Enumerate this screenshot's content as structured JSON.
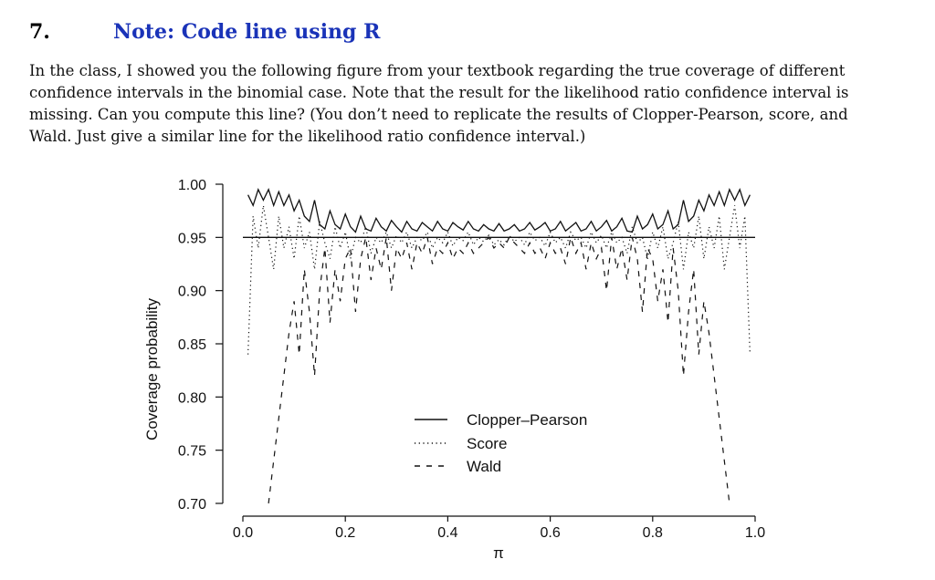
{
  "question": {
    "number": "7.",
    "title": "Note: Code line using R",
    "body_lines": [
      "In the class, I showed you the following figure from your textbook regarding the true coverage of different",
      "confidence intervals in the binomial case. Note that the result for the likelihood ratio confidence interval is",
      "missing. Can you compute this line? (You don’t need to replicate the results of Clopper-Pearson, score, and",
      "Wald. Just give a similar line for the likelihood ratio confidence interval.)"
    ]
  },
  "colors": {
    "title": "#1a33b8",
    "text": "#111111",
    "lines": "#111111"
  },
  "chart_data": {
    "type": "line",
    "xlabel": "π",
    "ylabel": "Coverage probability",
    "xlim": [
      0.0,
      1.0
    ],
    "ylim": [
      0.7,
      1.0
    ],
    "xticks": [
      "0.0",
      "0.2",
      "0.4",
      "0.6",
      "0.8",
      "1.0"
    ],
    "xtick_values": [
      0.0,
      0.2,
      0.4,
      0.6,
      0.8,
      1.0
    ],
    "yticks": [
      "1.00",
      "0.95",
      "0.90",
      "0.85",
      "0.80",
      "0.75",
      "0.70"
    ],
    "ytick_values": [
      1.0,
      0.95,
      0.9,
      0.85,
      0.8,
      0.75,
      0.7
    ],
    "reference_line": 0.95,
    "legend_position": "center",
    "series": [
      {
        "name": "Clopper–Pearson",
        "style": "solid",
        "x": [
          0.01,
          0.02,
          0.03,
          0.04,
          0.05,
          0.06,
          0.07,
          0.08,
          0.09,
          0.1,
          0.11,
          0.12,
          0.13,
          0.14,
          0.15,
          0.16,
          0.17,
          0.18,
          0.19,
          0.2,
          0.21,
          0.22,
          0.23,
          0.24,
          0.25,
          0.26,
          0.27,
          0.28,
          0.29,
          0.3,
          0.31,
          0.32,
          0.33,
          0.34,
          0.35,
          0.36,
          0.37,
          0.38,
          0.39,
          0.4,
          0.41,
          0.42,
          0.43,
          0.44,
          0.45,
          0.46,
          0.47,
          0.48,
          0.49,
          0.5,
          0.51,
          0.52,
          0.53,
          0.54,
          0.55,
          0.56,
          0.57,
          0.58,
          0.59,
          0.6,
          0.61,
          0.62,
          0.63,
          0.64,
          0.65,
          0.66,
          0.67,
          0.68,
          0.69,
          0.7,
          0.71,
          0.72,
          0.73,
          0.74,
          0.75,
          0.76,
          0.77,
          0.78,
          0.79,
          0.8,
          0.81,
          0.82,
          0.83,
          0.84,
          0.85,
          0.86,
          0.87,
          0.88,
          0.89,
          0.9,
          0.91,
          0.92,
          0.93,
          0.94,
          0.95,
          0.96,
          0.97,
          0.98,
          0.99
        ],
        "values": [
          0.99,
          0.98,
          0.995,
          0.985,
          0.995,
          0.98,
          0.993,
          0.98,
          0.99,
          0.975,
          0.985,
          0.97,
          0.965,
          0.985,
          0.962,
          0.958,
          0.975,
          0.962,
          0.958,
          0.972,
          0.96,
          0.955,
          0.97,
          0.958,
          0.956,
          0.968,
          0.96,
          0.956,
          0.966,
          0.96,
          0.955,
          0.965,
          0.958,
          0.956,
          0.964,
          0.96,
          0.956,
          0.965,
          0.958,
          0.956,
          0.964,
          0.96,
          0.957,
          0.965,
          0.958,
          0.956,
          0.962,
          0.958,
          0.956,
          0.963,
          0.956,
          0.958,
          0.962,
          0.956,
          0.958,
          0.964,
          0.957,
          0.96,
          0.964,
          0.956,
          0.958,
          0.965,
          0.956,
          0.96,
          0.964,
          0.956,
          0.958,
          0.965,
          0.956,
          0.96,
          0.966,
          0.956,
          0.96,
          0.968,
          0.956,
          0.955,
          0.97,
          0.958,
          0.962,
          0.972,
          0.958,
          0.962,
          0.975,
          0.958,
          0.962,
          0.985,
          0.965,
          0.97,
          0.985,
          0.975,
          0.99,
          0.98,
          0.993,
          0.98,
          0.995,
          0.985,
          0.995,
          0.98,
          0.99
        ]
      },
      {
        "name": "Score",
        "style": "dotted",
        "x": [
          0.01,
          0.02,
          0.03,
          0.04,
          0.05,
          0.06,
          0.07,
          0.08,
          0.09,
          0.1,
          0.11,
          0.12,
          0.13,
          0.14,
          0.15,
          0.16,
          0.17,
          0.18,
          0.19,
          0.2,
          0.21,
          0.22,
          0.23,
          0.24,
          0.25,
          0.26,
          0.27,
          0.28,
          0.29,
          0.3,
          0.31,
          0.32,
          0.33,
          0.34,
          0.35,
          0.36,
          0.37,
          0.38,
          0.39,
          0.4,
          0.41,
          0.42,
          0.43,
          0.44,
          0.45,
          0.46,
          0.47,
          0.48,
          0.49,
          0.5,
          0.51,
          0.52,
          0.53,
          0.54,
          0.55,
          0.56,
          0.57,
          0.58,
          0.59,
          0.6,
          0.61,
          0.62,
          0.63,
          0.64,
          0.65,
          0.66,
          0.67,
          0.68,
          0.69,
          0.7,
          0.71,
          0.72,
          0.73,
          0.74,
          0.75,
          0.76,
          0.77,
          0.78,
          0.79,
          0.8,
          0.81,
          0.82,
          0.83,
          0.84,
          0.85,
          0.86,
          0.87,
          0.88,
          0.89,
          0.9,
          0.91,
          0.92,
          0.93,
          0.94,
          0.95,
          0.96,
          0.97,
          0.98,
          0.99
        ],
        "values": [
          0.84,
          0.97,
          0.94,
          0.98,
          0.95,
          0.92,
          0.97,
          0.94,
          0.96,
          0.93,
          0.97,
          0.94,
          0.955,
          0.92,
          0.965,
          0.945,
          0.93,
          0.96,
          0.94,
          0.955,
          0.93,
          0.95,
          0.945,
          0.96,
          0.935,
          0.95,
          0.945,
          0.955,
          0.94,
          0.952,
          0.945,
          0.955,
          0.94,
          0.95,
          0.947,
          0.955,
          0.94,
          0.95,
          0.945,
          0.955,
          0.942,
          0.95,
          0.947,
          0.955,
          0.943,
          0.95,
          0.946,
          0.952,
          0.943,
          0.948,
          0.943,
          0.952,
          0.946,
          0.95,
          0.943,
          0.955,
          0.947,
          0.95,
          0.942,
          0.955,
          0.945,
          0.95,
          0.94,
          0.955,
          0.947,
          0.95,
          0.94,
          0.955,
          0.945,
          0.952,
          0.94,
          0.955,
          0.945,
          0.95,
          0.935,
          0.96,
          0.945,
          0.95,
          0.93,
          0.955,
          0.94,
          0.96,
          0.93,
          0.945,
          0.965,
          0.92,
          0.955,
          0.94,
          0.97,
          0.93,
          0.96,
          0.94,
          0.97,
          0.92,
          0.95,
          0.98,
          0.94,
          0.97,
          0.84
        ]
      },
      {
        "name": "Wald",
        "style": "dashed",
        "x": [
          0.05,
          0.06,
          0.07,
          0.08,
          0.09,
          0.1,
          0.11,
          0.12,
          0.13,
          0.14,
          0.15,
          0.16,
          0.17,
          0.18,
          0.19,
          0.2,
          0.21,
          0.22,
          0.23,
          0.24,
          0.25,
          0.26,
          0.27,
          0.28,
          0.29,
          0.3,
          0.31,
          0.32,
          0.33,
          0.34,
          0.35,
          0.36,
          0.37,
          0.38,
          0.39,
          0.4,
          0.41,
          0.42,
          0.43,
          0.44,
          0.45,
          0.46,
          0.47,
          0.48,
          0.49,
          0.5,
          0.51,
          0.52,
          0.53,
          0.54,
          0.55,
          0.56,
          0.57,
          0.58,
          0.59,
          0.6,
          0.61,
          0.62,
          0.63,
          0.64,
          0.65,
          0.66,
          0.67,
          0.68,
          0.69,
          0.7,
          0.71,
          0.72,
          0.73,
          0.74,
          0.75,
          0.76,
          0.77,
          0.78,
          0.79,
          0.8,
          0.81,
          0.82,
          0.83,
          0.84,
          0.85,
          0.86,
          0.87,
          0.88,
          0.89,
          0.9,
          0.91,
          0.92,
          0.93,
          0.94,
          0.95
        ],
        "values": [
          0.7,
          0.74,
          0.78,
          0.82,
          0.86,
          0.89,
          0.84,
          0.92,
          0.88,
          0.82,
          0.9,
          0.94,
          0.87,
          0.92,
          0.89,
          0.93,
          0.94,
          0.88,
          0.93,
          0.95,
          0.91,
          0.94,
          0.92,
          0.95,
          0.9,
          0.94,
          0.93,
          0.945,
          0.92,
          0.945,
          0.935,
          0.95,
          0.925,
          0.94,
          0.935,
          0.945,
          0.93,
          0.94,
          0.935,
          0.945,
          0.935,
          0.94,
          0.945,
          0.95,
          0.94,
          0.945,
          0.94,
          0.95,
          0.945,
          0.94,
          0.935,
          0.945,
          0.935,
          0.94,
          0.93,
          0.945,
          0.935,
          0.94,
          0.925,
          0.95,
          0.935,
          0.945,
          0.92,
          0.945,
          0.93,
          0.94,
          0.9,
          0.95,
          0.92,
          0.94,
          0.91,
          0.95,
          0.93,
          0.88,
          0.94,
          0.93,
          0.89,
          0.92,
          0.87,
          0.94,
          0.9,
          0.82,
          0.88,
          0.92,
          0.84,
          0.89,
          0.86,
          0.82,
          0.78,
          0.74,
          0.7
        ]
      }
    ]
  }
}
